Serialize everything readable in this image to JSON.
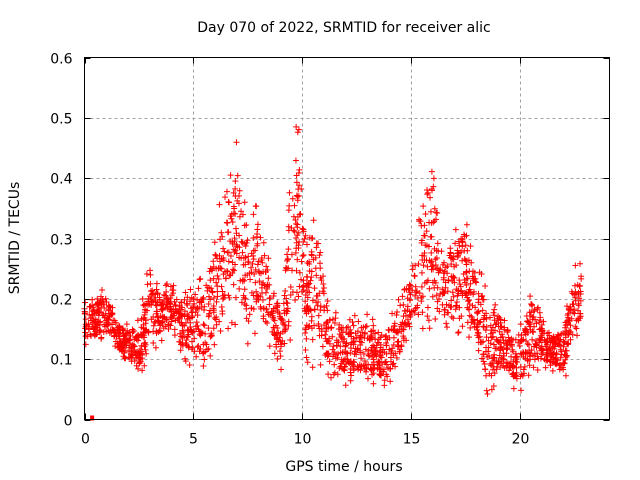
{
  "chart_data": {
    "type": "scatter",
    "title": "Day 070 of 2022, SRMTID for receiver alic",
    "xlabel": "GPS time / hours",
    "ylabel": "SRMTID / TECUs",
    "xlim": [
      0,
      24.1
    ],
    "ylim": [
      0,
      0.6
    ],
    "xticks": [
      0,
      5,
      10,
      15,
      20
    ],
    "xtick_labels": [
      "0",
      "5",
      "10",
      "15",
      "20"
    ],
    "yticks": [
      0,
      0.1,
      0.2,
      0.3,
      0.4,
      0.5,
      0.6
    ],
    "ytick_labels": [
      "0",
      "0.1",
      "0.2",
      "0.3",
      "0.4",
      "0.5",
      "0.6"
    ],
    "grid": true,
    "marker": "plus",
    "marker_color": "#ff0000",
    "special_points": [
      {
        "x": 0.35,
        "y": 0.0,
        "marker": "square"
      }
    ],
    "envelope": [
      [
        0.0,
        0.12,
        0.2
      ],
      [
        0.5,
        0.12,
        0.21
      ],
      [
        1.0,
        0.14,
        0.22
      ],
      [
        1.5,
        0.11,
        0.17
      ],
      [
        2.0,
        0.09,
        0.16
      ],
      [
        2.5,
        0.06,
        0.17
      ],
      [
        3.0,
        0.11,
        0.28
      ],
      [
        3.5,
        0.12,
        0.22
      ],
      [
        4.0,
        0.12,
        0.26
      ],
      [
        4.5,
        0.1,
        0.2
      ],
      [
        5.0,
        0.08,
        0.24
      ],
      [
        5.5,
        0.06,
        0.25
      ],
      [
        6.0,
        0.1,
        0.33
      ],
      [
        6.5,
        0.13,
        0.41
      ],
      [
        7.0,
        0.15,
        0.48
      ],
      [
        7.5,
        0.12,
        0.33
      ],
      [
        8.0,
        0.13,
        0.41
      ],
      [
        8.5,
        0.12,
        0.27
      ],
      [
        9.0,
        0.07,
        0.2
      ],
      [
        9.5,
        0.1,
        0.44
      ],
      [
        9.8,
        0.2,
        0.52
      ],
      [
        10.2,
        0.09,
        0.3
      ],
      [
        10.7,
        0.07,
        0.37
      ],
      [
        11.2,
        0.07,
        0.2
      ],
      [
        11.8,
        0.05,
        0.2
      ],
      [
        12.3,
        0.06,
        0.17
      ],
      [
        12.8,
        0.05,
        0.19
      ],
      [
        13.3,
        0.04,
        0.17
      ],
      [
        13.8,
        0.05,
        0.16
      ],
      [
        14.3,
        0.07,
        0.2
      ],
      [
        14.8,
        0.1,
        0.26
      ],
      [
        15.2,
        0.15,
        0.3
      ],
      [
        15.6,
        0.15,
        0.44
      ],
      [
        16.0,
        0.12,
        0.46
      ],
      [
        16.5,
        0.14,
        0.3
      ],
      [
        17.0,
        0.13,
        0.35
      ],
      [
        17.5,
        0.15,
        0.35
      ],
      [
        18.0,
        0.1,
        0.27
      ],
      [
        18.5,
        0.02,
        0.23
      ],
      [
        19.0,
        0.06,
        0.2
      ],
      [
        19.5,
        0.05,
        0.17
      ],
      [
        20.0,
        0.04,
        0.16
      ],
      [
        20.5,
        0.06,
        0.23
      ],
      [
        21.0,
        0.08,
        0.17
      ],
      [
        21.5,
        0.08,
        0.15
      ],
      [
        22.0,
        0.06,
        0.17
      ],
      [
        22.5,
        0.12,
        0.26
      ],
      [
        22.8,
        0.15,
        0.26
      ]
    ],
    "sample_points_per_hour": 100
  }
}
